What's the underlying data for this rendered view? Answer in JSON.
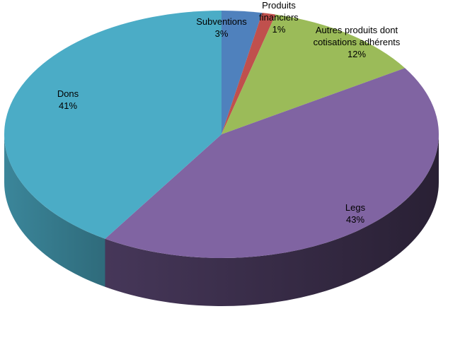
{
  "chart_data": {
    "type": "pie",
    "title": "",
    "three_d": true,
    "slices": [
      {
        "name": "Subventions",
        "value": 3,
        "pct_label": "3%",
        "color": "#4f81bd",
        "label_lines": [
          "Subventions",
          "3%"
        ]
      },
      {
        "name": "Produits financiers",
        "value": 1,
        "pct_label": "1%",
        "color": "#c0504d",
        "label_lines": [
          "Produits",
          "financiers",
          "1%"
        ]
      },
      {
        "name": "Autres produits dont cotisations adhérents",
        "value": 12,
        "pct_label": "12%",
        "color": "#9bbb59",
        "label_lines": [
          "Autres produits dont",
          "cotisations adhérents",
          "12%"
        ]
      },
      {
        "name": "Legs",
        "value": 43,
        "pct_label": "43%",
        "color": "#8064a2",
        "label_lines": [
          "Legs",
          "43%"
        ]
      },
      {
        "name": "Dons",
        "value": 41,
        "pct_label": "41%",
        "color": "#4bacc6",
        "label_lines": [
          "Dons",
          "41%"
        ]
      }
    ]
  }
}
